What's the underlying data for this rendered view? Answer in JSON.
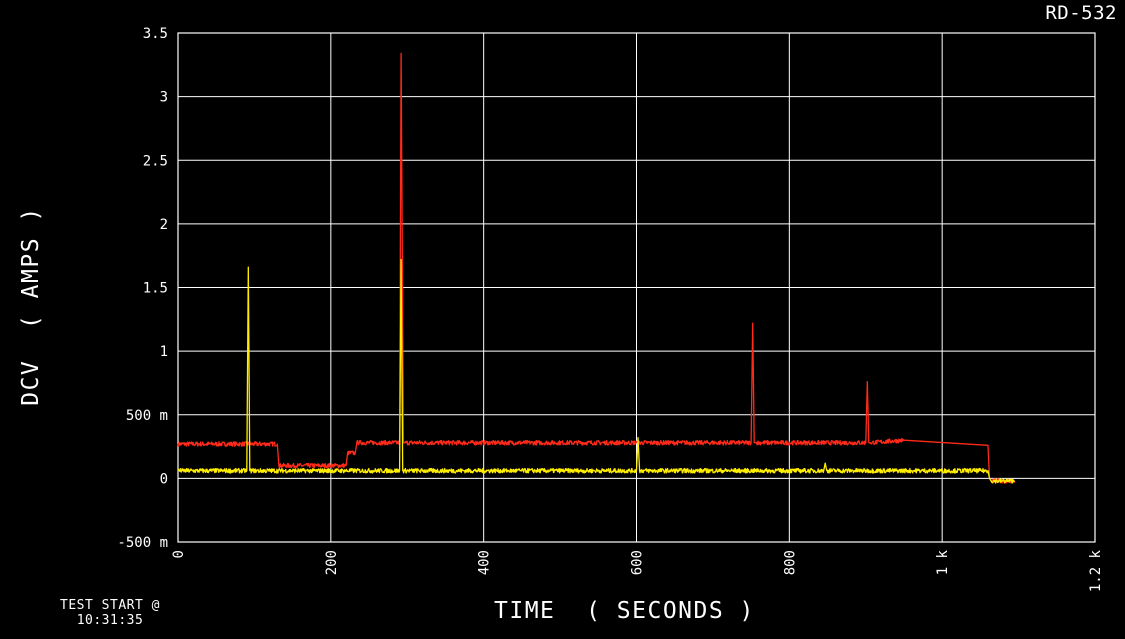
{
  "header": {
    "id_label": "RD-532"
  },
  "footer": {
    "test_start_label": "TEST START @",
    "test_start_time": "10:31:35"
  },
  "chart_data": {
    "type": "line",
    "xlabel": "TIME  ( SECONDS )",
    "ylabel": "DCV  ( AMPS )",
    "xlim": [
      0,
      1200
    ],
    "ylim": [
      -0.5,
      3.5
    ],
    "x_ticks": [
      0,
      200,
      400,
      600,
      800,
      1000,
      1200
    ],
    "x_tick_labels": [
      "0",
      "200",
      "400",
      "600",
      "800",
      "1 k",
      "1.2 k"
    ],
    "y_ticks": [
      -0.5,
      0,
      0.5,
      1,
      1.5,
      2,
      2.5,
      3,
      3.5
    ],
    "y_tick_labels": [
      "-500 m",
      "0",
      "500 m",
      "1",
      "1.5",
      "2",
      "2.5",
      "3",
      "3.5"
    ],
    "grid": true,
    "background": "#000000",
    "grid_color": "#ffffff",
    "series": [
      {
        "color": "#ff2a1a",
        "x": [
          0,
          130,
          132,
          220,
          222,
          232,
          234,
          290,
          292,
          295,
          297,
          600,
          750,
          752,
          754,
          756,
          900,
          902,
          904,
          906,
          950,
          1060,
          1062,
          1064,
          1095
        ],
        "y": [
          0.27,
          0.27,
          0.1,
          0.1,
          0.2,
          0.2,
          0.28,
          0.28,
          3.34,
          0.28,
          0.28,
          0.28,
          0.28,
          1.22,
          0.28,
          0.28,
          0.28,
          0.76,
          0.28,
          0.28,
          0.3,
          0.26,
          0.0,
          -0.02,
          -0.02
        ]
      },
      {
        "color": "#ffee00",
        "x": [
          0,
          90,
          92,
          94,
          290,
          292,
          294,
          600,
          602,
          604,
          845,
          847,
          849,
          1060,
          1062,
          1064,
          1095
        ],
        "y": [
          0.06,
          0.06,
          1.66,
          0.06,
          0.06,
          1.72,
          0.06,
          0.06,
          0.32,
          0.06,
          0.06,
          0.12,
          0.06,
          0.06,
          0.0,
          -0.02,
          -0.02
        ]
      }
    ]
  }
}
